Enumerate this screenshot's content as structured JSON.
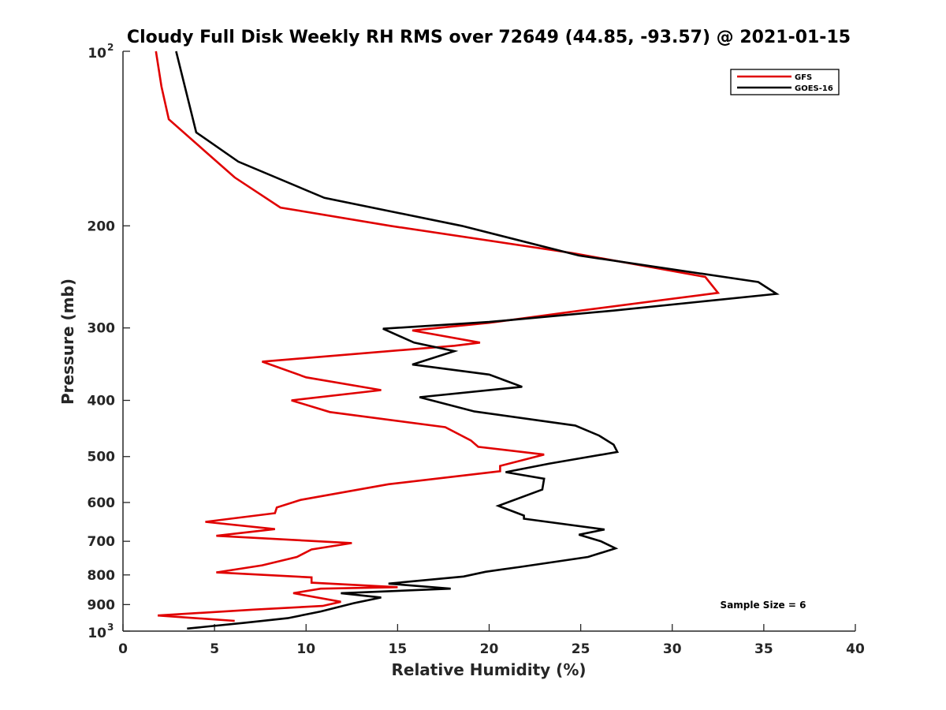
{
  "chart_data": {
    "type": "line",
    "title": "Cloudy Full Disk Weekly RH RMS over 72649 (44.85, -93.57) @ 2021-01-15",
    "xlabel": "Relative Humidity (%)",
    "ylabel": "Pressure (mb)",
    "xlim": [
      0,
      40
    ],
    "ylim": [
      100,
      1000
    ],
    "y_scale": "log",
    "y_reversed": true,
    "grid": false,
    "legend_position": "top-right",
    "x_ticks": [
      "0",
      "5",
      "10",
      "15",
      "20",
      "25",
      "30",
      "35",
      "40"
    ],
    "y_ticks": [
      {
        "value": 100,
        "base": "10",
        "exp": "2"
      },
      {
        "value": 200,
        "label": "200"
      },
      {
        "value": 300,
        "label": "300"
      },
      {
        "value": 400,
        "label": "400"
      },
      {
        "value": 500,
        "label": "500"
      },
      {
        "value": 600,
        "label": "600"
      },
      {
        "value": 700,
        "label": "700"
      },
      {
        "value": 800,
        "label": "800"
      },
      {
        "value": 900,
        "label": "900"
      },
      {
        "value": 1000,
        "base": "10",
        "exp": "3"
      }
    ],
    "annotation": "Sample Size = 6",
    "series": [
      {
        "name": "GFS",
        "color": "#e00000",
        "points": [
          [
            1.8,
            100
          ],
          [
            2.1,
            115
          ],
          [
            2.5,
            131
          ],
          [
            4.4,
            148
          ],
          [
            6.1,
            165
          ],
          [
            8.6,
            186
          ],
          [
            14.6,
            200
          ],
          [
            24.6,
            223
          ],
          [
            31.8,
            245
          ],
          [
            32.5,
            261
          ],
          [
            25,
            280
          ],
          [
            20,
            294
          ],
          [
            15.8,
            303
          ],
          [
            19.5,
            318
          ],
          [
            18.1,
            322
          ],
          [
            7.6,
            343
          ],
          [
            10,
            365
          ],
          [
            14.1,
            384
          ],
          [
            9.2,
            400
          ],
          [
            11.3,
            419
          ],
          [
            17.6,
            445
          ],
          [
            19,
            469
          ],
          [
            19.4,
            481
          ],
          [
            23,
            496
          ],
          [
            20.6,
            519
          ],
          [
            20.6,
            530
          ],
          [
            14.5,
            558
          ],
          [
            9.7,
            594
          ],
          [
            8.4,
            612
          ],
          [
            8.3,
            626
          ],
          [
            4.5,
            648
          ],
          [
            8.3,
            667
          ],
          [
            5.1,
            685
          ],
          [
            12.5,
            705
          ],
          [
            10.3,
            723
          ],
          [
            9.5,
            745
          ],
          [
            7.6,
            770
          ],
          [
            5.1,
            792
          ],
          [
            10.3,
            808
          ],
          [
            10.3,
            825
          ],
          [
            15,
            840
          ],
          [
            10.8,
            845
          ],
          [
            9.3,
            860
          ],
          [
            11.9,
            890
          ],
          [
            10.9,
            905
          ],
          [
            7.2,
            918
          ],
          [
            1.9,
            940
          ],
          [
            6.1,
            960
          ]
        ]
      },
      {
        "name": "GOES-16",
        "color": "#000000",
        "points": [
          [
            2.9,
            100
          ],
          [
            4,
            138
          ],
          [
            6.3,
            155
          ],
          [
            11,
            179
          ],
          [
            18.5,
            200
          ],
          [
            24.9,
            225
          ],
          [
            34.7,
            250
          ],
          [
            35.7,
            262
          ],
          [
            26.8,
            280
          ],
          [
            20,
            293
          ],
          [
            14.2,
            301
          ],
          [
            15.9,
            318
          ],
          [
            18.1,
            329
          ],
          [
            15.8,
            347
          ],
          [
            20,
            361
          ],
          [
            21.8,
            379
          ],
          [
            16.2,
            395
          ],
          [
            19.2,
            418
          ],
          [
            24.7,
            442
          ],
          [
            26,
            460
          ],
          [
            26.8,
            477
          ],
          [
            27,
            491
          ],
          [
            23.3,
            514
          ],
          [
            20.9,
            532
          ],
          [
            23,
            546
          ],
          [
            22.9,
            570
          ],
          [
            20.5,
            608
          ],
          [
            21.9,
            632
          ],
          [
            21.9,
            640
          ],
          [
            26.3,
            668
          ],
          [
            24.9,
            682
          ],
          [
            26.1,
            700
          ],
          [
            26.9,
            720
          ],
          [
            25.4,
            745
          ],
          [
            21.7,
            775
          ],
          [
            19.8,
            790
          ],
          [
            18.6,
            805
          ],
          [
            14.5,
            828
          ],
          [
            17.9,
            845
          ],
          [
            11.9,
            860
          ],
          [
            14.1,
            875
          ],
          [
            12.6,
            895
          ],
          [
            10.8,
            925
          ],
          [
            9,
            950
          ],
          [
            6.6,
            968
          ],
          [
            3.5,
            990
          ]
        ]
      }
    ]
  }
}
